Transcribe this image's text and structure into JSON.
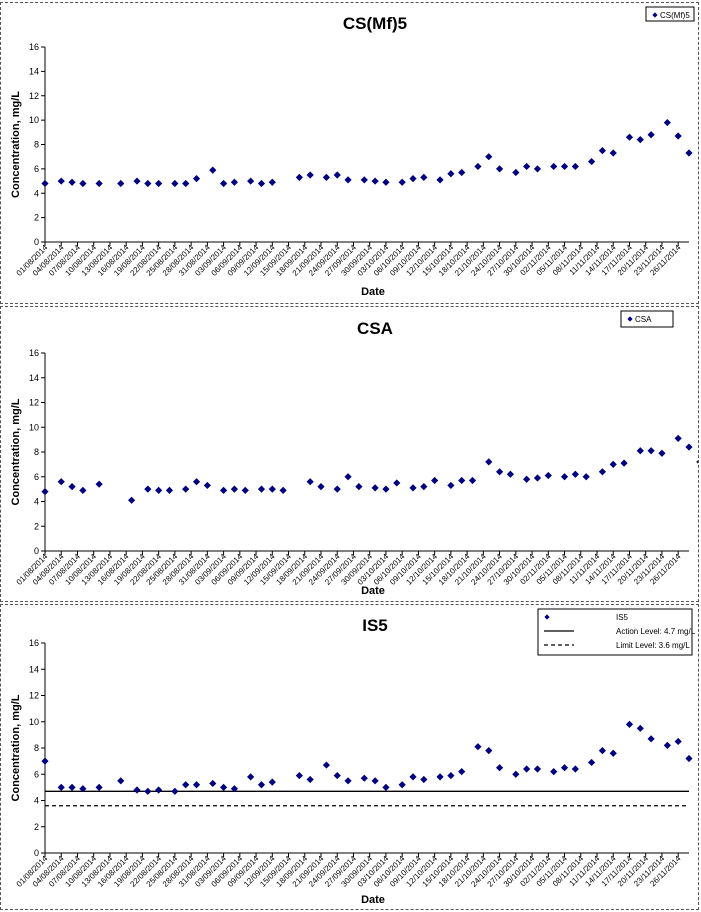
{
  "x_ticks": [
    "01/08/2014",
    "04/08/2014",
    "07/08/2014",
    "10/08/2014",
    "13/08/2014",
    "16/08/2014",
    "19/08/2014",
    "22/08/2014",
    "25/08/2014",
    "28/08/2014",
    "31/08/2014",
    "03/09/2014",
    "06/09/2014",
    "09/09/2014",
    "12/09/2014",
    "15/09/2014",
    "18/09/2014",
    "21/09/2014",
    "24/09/2014",
    "27/09/2014",
    "30/09/2014",
    "03/10/2014",
    "06/10/2014",
    "09/10/2014",
    "12/10/2014",
    "15/10/2014",
    "18/10/2014",
    "21/10/2014",
    "24/10/2014",
    "27/10/2014",
    "30/10/2014",
    "02/11/2014",
    "05/11/2014",
    "08/11/2014",
    "11/11/2014",
    "14/11/2014",
    "17/11/2014",
    "20/11/2014",
    "23/11/2014",
    "26/11/2014"
  ],
  "chart_data": [
    {
      "type": "scatter",
      "title": "CS(Mf)5",
      "xlabel": "Date",
      "ylabel": "Concentration, mg/L",
      "ylim": [
        0,
        16
      ],
      "y_ticks": [
        0,
        2,
        4,
        6,
        8,
        10,
        12,
        14,
        16
      ],
      "xlim": [
        "01/08/2014",
        "28/11/2014"
      ],
      "grid": false,
      "legend_position": "top-right",
      "series": [
        {
          "name": "CS(Mf)5",
          "color": "#000080",
          "marker": "diamond",
          "points": [
            [
              "01/08/2014",
              4.8
            ],
            [
              "04/08/2014",
              5.0
            ],
            [
              "06/08/2014",
              4.9
            ],
            [
              "08/08/2014",
              4.8
            ],
            [
              "11/08/2014",
              4.8
            ],
            [
              "15/08/2014",
              4.8
            ],
            [
              "18/08/2014",
              5.0
            ],
            [
              "20/08/2014",
              4.8
            ],
            [
              "22/08/2014",
              4.8
            ],
            [
              "25/08/2014",
              4.8
            ],
            [
              "27/08/2014",
              4.8
            ],
            [
              "29/08/2014",
              5.2
            ],
            [
              "01/09/2014",
              5.9
            ],
            [
              "03/09/2014",
              4.8
            ],
            [
              "05/09/2014",
              4.9
            ],
            [
              "08/09/2014",
              5.0
            ],
            [
              "10/09/2014",
              4.8
            ],
            [
              "12/09/2014",
              4.9
            ],
            [
              "17/09/2014",
              5.3
            ],
            [
              "19/09/2014",
              5.5
            ],
            [
              "22/09/2014",
              5.3
            ],
            [
              "24/09/2014",
              5.5
            ],
            [
              "26/09/2014",
              5.1
            ],
            [
              "29/09/2014",
              5.1
            ],
            [
              "01/10/2014",
              5.0
            ],
            [
              "03/10/2014",
              4.9
            ],
            [
              "06/10/2014",
              4.9
            ],
            [
              "08/10/2014",
              5.2
            ],
            [
              "10/10/2014",
              5.3
            ],
            [
              "13/10/2014",
              5.1
            ],
            [
              "15/10/2014",
              5.6
            ],
            [
              "17/10/2014",
              5.7
            ],
            [
              "20/10/2014",
              6.2
            ],
            [
              "22/10/2014",
              7.0
            ],
            [
              "24/10/2014",
              6.0
            ],
            [
              "27/10/2014",
              5.7
            ],
            [
              "29/10/2014",
              6.2
            ],
            [
              "31/10/2014",
              6.0
            ],
            [
              "03/11/2014",
              6.2
            ],
            [
              "05/11/2014",
              6.2
            ],
            [
              "07/11/2014",
              6.2
            ],
            [
              "10/11/2014",
              6.6
            ],
            [
              "12/11/2014",
              7.5
            ],
            [
              "14/11/2014",
              7.3
            ],
            [
              "17/11/2014",
              8.6
            ],
            [
              "19/11/2014",
              8.4
            ],
            [
              "21/11/2014",
              8.8
            ],
            [
              "24/11/2014",
              9.8
            ],
            [
              "26/11/2014",
              8.7
            ],
            [
              "28/11/2014",
              7.3
            ]
          ]
        }
      ]
    },
    {
      "type": "scatter",
      "title": "CSA",
      "xlabel": "Date",
      "ylabel": "Concentration, mg/L",
      "ylim": [
        0,
        16
      ],
      "y_ticks": [
        0,
        2,
        4,
        6,
        8,
        10,
        12,
        14,
        16
      ],
      "xlim": [
        "01/08/2014",
        "28/11/2014"
      ],
      "grid": false,
      "legend_position": "top-right",
      "series": [
        {
          "name": "CSA",
          "color": "#000080",
          "marker": "diamond",
          "points": [
            [
              "01/08/2014",
              4.8
            ],
            [
              "04/08/2014",
              5.6
            ],
            [
              "06/08/2014",
              5.2
            ],
            [
              "08/08/2014",
              4.9
            ],
            [
              "11/08/2014",
              5.4
            ],
            [
              "17/08/2014",
              4.1
            ],
            [
              "20/08/2014",
              5.0
            ],
            [
              "22/08/2014",
              4.9
            ],
            [
              "24/08/2014",
              4.9
            ],
            [
              "27/08/2014",
              5.0
            ],
            [
              "29/08/2014",
              5.6
            ],
            [
              "31/08/2014",
              5.3
            ],
            [
              "03/09/2014",
              4.9
            ],
            [
              "05/09/2014",
              5.0
            ],
            [
              "07/09/2014",
              4.9
            ],
            [
              "10/09/2014",
              5.0
            ],
            [
              "12/09/2014",
              5.0
            ],
            [
              "14/09/2014",
              4.9
            ],
            [
              "19/09/2014",
              5.6
            ],
            [
              "21/09/2014",
              5.2
            ],
            [
              "24/09/2014",
              5.0
            ],
            [
              "26/09/2014",
              6.0
            ],
            [
              "28/09/2014",
              5.2
            ],
            [
              "01/10/2014",
              5.1
            ],
            [
              "03/10/2014",
              5.0
            ],
            [
              "05/10/2014",
              5.5
            ],
            [
              "08/10/2014",
              5.1
            ],
            [
              "10/10/2014",
              5.2
            ],
            [
              "12/10/2014",
              5.7
            ],
            [
              "15/10/2014",
              5.3
            ],
            [
              "17/10/2014",
              5.7
            ],
            [
              "19/10/2014",
              5.7
            ],
            [
              "22/10/2014",
              7.2
            ],
            [
              "24/10/2014",
              6.4
            ],
            [
              "26/10/2014",
              6.2
            ],
            [
              "29/10/2014",
              5.8
            ],
            [
              "31/10/2014",
              5.9
            ],
            [
              "02/11/2014",
              6.1
            ],
            [
              "05/11/2014",
              6.0
            ],
            [
              "07/11/2014",
              6.2
            ],
            [
              "09/11/2014",
              6.0
            ],
            [
              "12/11/2014",
              6.4
            ],
            [
              "14/11/2014",
              7.0
            ],
            [
              "16/11/2014",
              7.1
            ],
            [
              "19/11/2014",
              8.1
            ],
            [
              "21/11/2014",
              8.1
            ],
            [
              "23/11/2014",
              7.9
            ],
            [
              "26/11/2014",
              9.1
            ],
            [
              "28/11/2014",
              8.4
            ],
            [
              "30/11/2014",
              7.2
            ]
          ]
        }
      ]
    },
    {
      "type": "scatter",
      "title": "IS5",
      "xlabel": "Date",
      "ylabel": "Concentration, mg/L",
      "ylim": [
        0,
        16
      ],
      "y_ticks": [
        0,
        2,
        4,
        6,
        8,
        10,
        12,
        14,
        16
      ],
      "xlim": [
        "01/08/2014",
        "28/11/2014"
      ],
      "grid": false,
      "legend_position": "top-right",
      "series": [
        {
          "name": "IS5",
          "color": "#000080",
          "marker": "diamond",
          "points": [
            [
              "01/08/2014",
              7.0
            ],
            [
              "04/08/2014",
              5.0
            ],
            [
              "06/08/2014",
              5.0
            ],
            [
              "08/08/2014",
              4.9
            ],
            [
              "11/08/2014",
              5.0
            ],
            [
              "15/08/2014",
              5.5
            ],
            [
              "18/08/2014",
              4.8
            ],
            [
              "20/08/2014",
              4.7
            ],
            [
              "22/08/2014",
              4.8
            ],
            [
              "25/08/2014",
              4.7
            ],
            [
              "27/08/2014",
              5.2
            ],
            [
              "29/08/2014",
              5.2
            ],
            [
              "01/09/2014",
              5.3
            ],
            [
              "03/09/2014",
              5.0
            ],
            [
              "05/09/2014",
              4.9
            ],
            [
              "08/09/2014",
              5.8
            ],
            [
              "10/09/2014",
              5.2
            ],
            [
              "12/09/2014",
              5.4
            ],
            [
              "17/09/2014",
              5.9
            ],
            [
              "19/09/2014",
              5.6
            ],
            [
              "22/09/2014",
              6.7
            ],
            [
              "24/09/2014",
              5.9
            ],
            [
              "26/09/2014",
              5.5
            ],
            [
              "29/09/2014",
              5.7
            ],
            [
              "01/10/2014",
              5.5
            ],
            [
              "03/10/2014",
              5.0
            ],
            [
              "06/10/2014",
              5.2
            ],
            [
              "08/10/2014",
              5.8
            ],
            [
              "10/10/2014",
              5.6
            ],
            [
              "13/10/2014",
              5.8
            ],
            [
              "15/10/2014",
              5.9
            ],
            [
              "17/10/2014",
              6.2
            ],
            [
              "20/10/2014",
              8.1
            ],
            [
              "22/10/2014",
              7.8
            ],
            [
              "24/10/2014",
              6.5
            ],
            [
              "27/10/2014",
              6.0
            ],
            [
              "29/10/2014",
              6.4
            ],
            [
              "31/10/2014",
              6.4
            ],
            [
              "03/11/2014",
              6.2
            ],
            [
              "05/11/2014",
              6.5
            ],
            [
              "07/11/2014",
              6.4
            ],
            [
              "10/11/2014",
              6.9
            ],
            [
              "12/11/2014",
              7.8
            ],
            [
              "14/11/2014",
              7.6
            ],
            [
              "17/11/2014",
              9.8
            ],
            [
              "19/11/2014",
              9.5
            ],
            [
              "21/11/2014",
              8.7
            ],
            [
              "24/11/2014",
              8.2
            ],
            [
              "26/11/2014",
              8.5
            ],
            [
              "28/11/2014",
              7.2
            ]
          ]
        }
      ],
      "reference_lines": [
        {
          "name": "Action Level: 4.7 mg/L",
          "value": 4.7,
          "style": "solid",
          "color": "#000000"
        },
        {
          "name": "Limit Level: 3.6 mg/L",
          "value": 3.6,
          "style": "dashed",
          "color": "#000000"
        }
      ]
    }
  ]
}
